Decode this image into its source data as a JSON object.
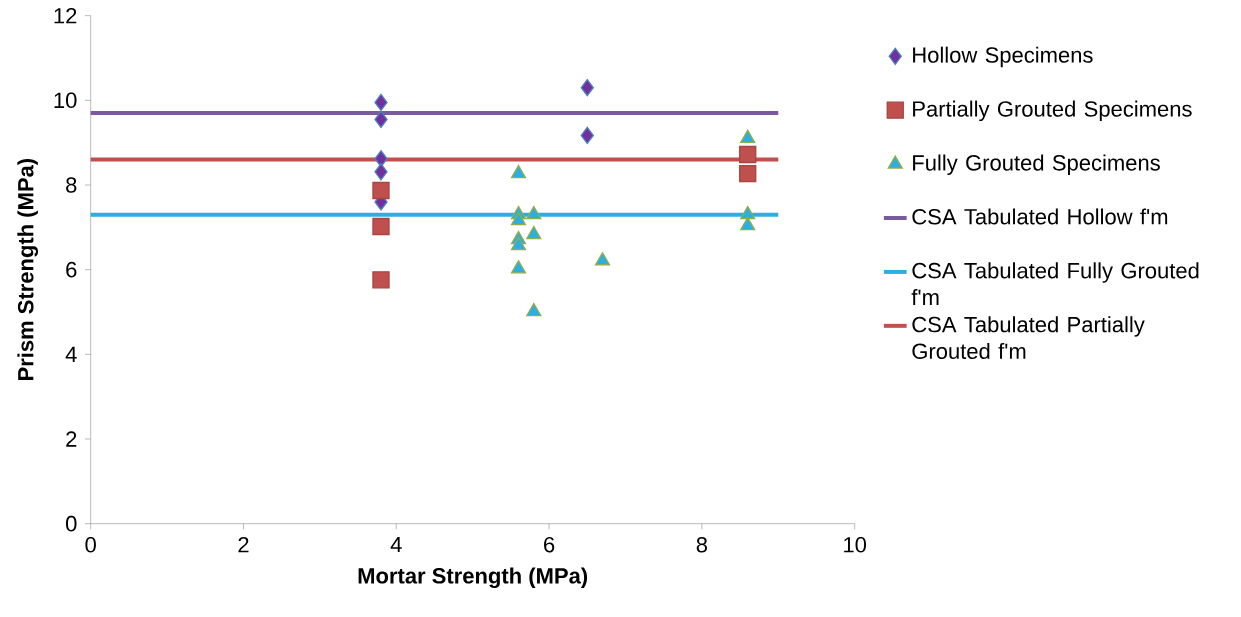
{
  "chart_data": {
    "type": "scatter",
    "xlabel": "Mortar Strength (MPa)",
    "ylabel": "Prism Strength (MPa)",
    "xlim": [
      0,
      10
    ],
    "ylim": [
      0,
      12
    ],
    "xticks": [
      0,
      2,
      4,
      6,
      8,
      10
    ],
    "yticks": [
      0,
      2,
      4,
      6,
      8,
      10,
      12
    ],
    "grid": false,
    "legend": "right",
    "series": [
      {
        "name": "Hollow Specimens",
        "marker": "diamond",
        "color": "#7030a0",
        "x": [
          3.8,
          3.8,
          3.8,
          3.8,
          3.8,
          6.5,
          6.5
        ],
        "values": [
          9.95,
          9.55,
          8.62,
          8.31,
          7.6,
          10.3,
          9.17
        ]
      },
      {
        "name": "Partially Grouted Specimens",
        "marker": "square",
        "color": "#c0504d",
        "x": [
          3.8,
          3.8,
          3.8,
          8.6,
          8.6
        ],
        "values": [
          7.87,
          7.02,
          5.76,
          8.27,
          8.72
        ]
      },
      {
        "name": "Fully Grouted Specimens",
        "marker": "triangle",
        "color": "#2aaee4",
        "x": [
          5.6,
          5.6,
          5.6,
          5.6,
          5.6,
          5.6,
          5.8,
          5.8,
          5.8,
          6.7,
          8.6,
          8.6,
          8.6
        ],
        "values": [
          8.27,
          7.3,
          7.16,
          6.71,
          6.57,
          6.02,
          7.3,
          6.83,
          5.01,
          6.21,
          9.1,
          7.3,
          7.04
        ]
      },
      {
        "name": "CSA Tabulated Hollow f'm",
        "type": "line",
        "marker": "none",
        "color": "#7a5a9e",
        "x": [
          0,
          9
        ],
        "values": [
          9.7,
          9.7
        ]
      },
      {
        "name": "CSA Tabulated Fully Grouted f'm",
        "type": "line",
        "marker": "none",
        "color": "#2aaee4",
        "x": [
          0,
          9
        ],
        "values": [
          7.3,
          7.3
        ]
      },
      {
        "name": "CSA Tabulated Partially Grouted f'm",
        "type": "line",
        "marker": "none",
        "color": "#c0504d",
        "x": [
          0,
          9
        ],
        "values": [
          8.6,
          8.6
        ]
      }
    ]
  }
}
